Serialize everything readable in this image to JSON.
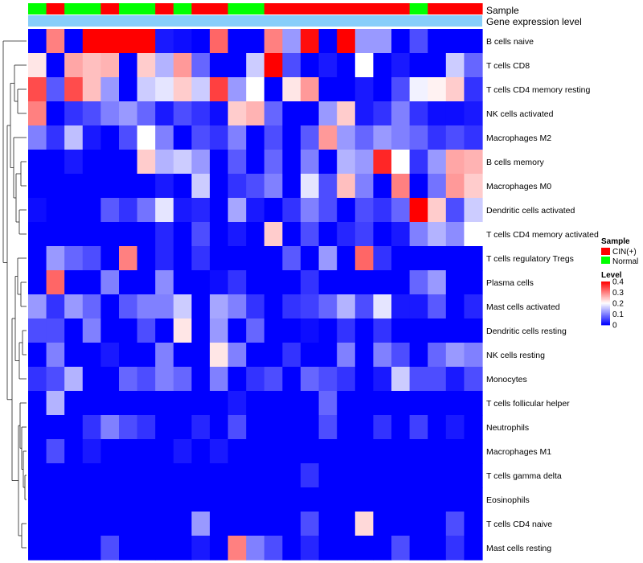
{
  "chart_data": {
    "type": "heatmap",
    "title": "",
    "annotation_tracks": [
      "Sample",
      "Gene expression level"
    ],
    "sample_groups": [
      "N",
      "C",
      "N",
      "N",
      "C",
      "N",
      "N",
      "C",
      "N",
      "C",
      "C",
      "N",
      "N",
      "C",
      "C",
      "C",
      "C",
      "C",
      "C",
      "C",
      "C",
      "N",
      "C",
      "C",
      "C"
    ],
    "rows": [
      "B cells naive",
      "T cells CD8",
      "T cells CD4 memory resting",
      "NK cells activated",
      "Macrophages M2",
      "B cells memory",
      "Macrophages M0",
      "Dendritic cells activated",
      "T cells CD4 memory activated",
      "T cells regulatory  Tregs",
      "Plasma cells",
      "Mast cells activated",
      "Dendritic cells resting",
      "NK cells resting",
      "Monocytes",
      "T cells follicular helper",
      "Neutrophils",
      "Macrophages M1",
      "T cells gamma delta",
      "Eosinophils",
      "T cells CD4 naive",
      "Mast cells resting"
    ],
    "values": [
      [
        0.0,
        0.3,
        0.0,
        0.4,
        0.4,
        0.4,
        0.4,
        0.02,
        0.01,
        0.0,
        0.32,
        0.0,
        0.0,
        0.3,
        0.12,
        0.39,
        0.0,
        0.4,
        0.12,
        0.12,
        0.0,
        0.06,
        0.0,
        0.0,
        0.0
      ],
      [
        0.22,
        0.0,
        0.27,
        0.25,
        0.26,
        0.0,
        0.24,
        0.14,
        0.28,
        0.08,
        0.0,
        0.0,
        0.16,
        0.4,
        0.06,
        0.0,
        0.02,
        0.0,
        0.2,
        0.0,
        0.02,
        0.0,
        0.0,
        0.16,
        0.08
      ],
      [
        0.34,
        0.07,
        0.34,
        0.25,
        0.12,
        0.0,
        0.16,
        0.18,
        0.24,
        0.16,
        0.35,
        0.12,
        0.2,
        0.0,
        0.22,
        0.28,
        0.0,
        0.0,
        0.02,
        0.0,
        0.06,
        0.19,
        0.21,
        0.24,
        0.04
      ],
      [
        0.3,
        0.0,
        0.04,
        0.06,
        0.1,
        0.12,
        0.08,
        0.02,
        0.06,
        0.04,
        0.01,
        0.24,
        0.26,
        0.08,
        0.0,
        0.0,
        0.12,
        0.24,
        0.02,
        0.04,
        0.1,
        0.04,
        0.01,
        0.01,
        0.02
      ],
      [
        0.1,
        0.04,
        0.15,
        0.02,
        0.0,
        0.06,
        0.2,
        0.1,
        0.0,
        0.06,
        0.04,
        0.1,
        0.0,
        0.06,
        0.0,
        0.07,
        0.28,
        0.12,
        0.08,
        0.12,
        0.1,
        0.08,
        0.04,
        0.06,
        0.04
      ],
      [
        0.0,
        0.0,
        0.02,
        0.0,
        0.0,
        0.0,
        0.24,
        0.14,
        0.16,
        0.12,
        0.0,
        0.07,
        0.0,
        0.08,
        0.0,
        0.1,
        0.0,
        0.14,
        0.12,
        0.37,
        0.2,
        0.04,
        0.12,
        0.27,
        0.26
      ],
      [
        0.0,
        0.0,
        0.0,
        0.0,
        0.0,
        0.0,
        0.0,
        0.02,
        0.0,
        0.16,
        0.0,
        0.04,
        0.06,
        0.1,
        0.0,
        0.18,
        0.06,
        0.25,
        0.1,
        0.0,
        0.3,
        0.0,
        0.09,
        0.28,
        0.24
      ],
      [
        0.01,
        0.0,
        0.0,
        0.0,
        0.07,
        0.04,
        0.09,
        0.18,
        0.02,
        0.03,
        0.0,
        0.13,
        0.02,
        0.0,
        0.04,
        0.1,
        0.06,
        0.0,
        0.06,
        0.04,
        0.08,
        0.4,
        0.24,
        0.06,
        0.16
      ],
      [
        0.0,
        0.0,
        0.0,
        0.0,
        0.0,
        0.0,
        0.0,
        0.03,
        0.0,
        0.06,
        0.0,
        0.02,
        0.0,
        0.24,
        0.0,
        0.06,
        0.0,
        0.03,
        0.05,
        0.0,
        0.02,
        0.1,
        0.14,
        0.11,
        0.2
      ],
      [
        0.0,
        0.12,
        0.08,
        0.06,
        0.0,
        0.3,
        0.0,
        0.03,
        0.0,
        0.04,
        0.0,
        0.0,
        0.0,
        0.0,
        0.07,
        0.0,
        0.12,
        0.0,
        0.32,
        0.04,
        0.0,
        0.0,
        0.0,
        0.0,
        0.0
      ],
      [
        0.0,
        0.32,
        0.0,
        0.0,
        0.1,
        0.0,
        0.0,
        0.11,
        0.0,
        0.0,
        0.01,
        0.04,
        0.0,
        0.0,
        0.0,
        0.04,
        0.0,
        0.0,
        0.0,
        0.0,
        0.0,
        0.08,
        0.12,
        0.0,
        0.0
      ],
      [
        0.12,
        0.04,
        0.12,
        0.08,
        0.0,
        0.07,
        0.1,
        0.1,
        0.16,
        0.0,
        0.13,
        0.1,
        0.04,
        0.0,
        0.04,
        0.05,
        0.08,
        0.14,
        0.06,
        0.18,
        0.02,
        0.02,
        0.07,
        0.0,
        0.03
      ],
      [
        0.06,
        0.06,
        0.0,
        0.1,
        0.0,
        0.0,
        0.06,
        0.0,
        0.22,
        0.0,
        0.12,
        0.0,
        0.08,
        0.0,
        0.0,
        0.01,
        0.0,
        0.04,
        0.0,
        0.04,
        0.0,
        0.0,
        0.0,
        0.0,
        0.0
      ],
      [
        0.0,
        0.1,
        0.0,
        0.0,
        0.02,
        0.0,
        0.0,
        0.1,
        0.0,
        0.0,
        0.22,
        0.1,
        0.0,
        0.0,
        0.04,
        0.0,
        0.0,
        0.1,
        0.0,
        0.1,
        0.06,
        0.0,
        0.08,
        0.12,
        0.1
      ],
      [
        0.04,
        0.06,
        0.14,
        0.0,
        0.0,
        0.08,
        0.06,
        0.1,
        0.08,
        0.0,
        0.1,
        0.0,
        0.04,
        0.06,
        0.0,
        0.08,
        0.06,
        0.04,
        0.0,
        0.02,
        0.16,
        0.06,
        0.06,
        0.02,
        0.06
      ],
      [
        0.0,
        0.14,
        0.0,
        0.0,
        0.0,
        0.0,
        0.0,
        0.0,
        0.0,
        0.0,
        0.0,
        0.02,
        0.0,
        0.0,
        0.0,
        0.0,
        0.08,
        0.0,
        0.0,
        0.0,
        0.0,
        0.0,
        0.0,
        0.0,
        0.0
      ],
      [
        0.0,
        0.0,
        0.0,
        0.04,
        0.1,
        0.06,
        0.04,
        0.0,
        0.0,
        0.03,
        0.0,
        0.06,
        0.0,
        0.0,
        0.0,
        0.0,
        0.06,
        0.0,
        0.0,
        0.04,
        0.0,
        0.05,
        0.0,
        0.02,
        0.0
      ],
      [
        0.0,
        0.06,
        0.0,
        0.02,
        0.0,
        0.0,
        0.0,
        0.0,
        0.02,
        0.0,
        0.02,
        0.0,
        0.0,
        0.0,
        0.0,
        0.0,
        0.0,
        0.0,
        0.0,
        0.0,
        0.0,
        0.0,
        0.0,
        0.0,
        0.0
      ],
      [
        0.0,
        0.0,
        0.0,
        0.0,
        0.0,
        0.0,
        0.0,
        0.0,
        0.0,
        0.0,
        0.0,
        0.0,
        0.0,
        0.0,
        0.0,
        0.04,
        0.0,
        0.0,
        0.0,
        0.0,
        0.0,
        0.0,
        0.0,
        0.0,
        0.0
      ],
      [
        0.0,
        0.0,
        0.0,
        0.0,
        0.0,
        0.0,
        0.0,
        0.0,
        0.0,
        0.0,
        0.0,
        0.0,
        0.0,
        0.0,
        0.0,
        0.0,
        0.0,
        0.0,
        0.0,
        0.0,
        0.0,
        0.0,
        0.0,
        0.0,
        0.0
      ],
      [
        0.0,
        0.0,
        0.0,
        0.0,
        0.0,
        0.0,
        0.0,
        0.0,
        0.0,
        0.12,
        0.0,
        0.0,
        0.0,
        0.0,
        0.0,
        0.06,
        0.0,
        0.0,
        0.23,
        0.0,
        0.0,
        0.0,
        0.0,
        0.06,
        0.0
      ],
      [
        0.0,
        0.0,
        0.0,
        0.0,
        0.06,
        0.0,
        0.0,
        0.0,
        0.0,
        0.02,
        0.0,
        0.3,
        0.1,
        0.06,
        0.0,
        0.03,
        0.0,
        0.0,
        0.0,
        0.0,
        0.06,
        0.0,
        0.0,
        0.04,
        0.0
      ]
    ],
    "color_scale": {
      "min": 0,
      "max": 0.4,
      "stops": [
        {
          "value": 0,
          "color": "#0000ff"
        },
        {
          "value": 0.2,
          "color": "#ffffff"
        },
        {
          "value": 0.4,
          "color": "#ff0000"
        }
      ]
    },
    "legend": {
      "sample_title": "Sample",
      "sample_entries": [
        {
          "label": "CIN(+)",
          "color": "#ff0000"
        },
        {
          "label": "Normal",
          "color": "#00ff00"
        }
      ],
      "level_title": "Level",
      "level_ticks": [
        {
          "value": 0.4,
          "label": "0.4"
        },
        {
          "value": 0.3,
          "label": "0.3"
        },
        {
          "value": 0.2,
          "label": "0.2"
        },
        {
          "value": 0.1,
          "label": "0.1"
        },
        {
          "value": 0,
          "label": "0"
        }
      ]
    },
    "expression_track_color": "#87cefa"
  }
}
